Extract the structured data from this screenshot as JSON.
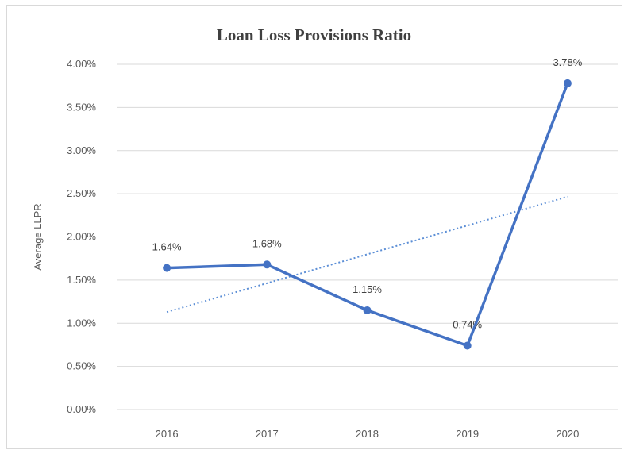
{
  "chart_data": {
    "type": "line",
    "title": "Loan Loss Provisions Ratio",
    "xlabel": "",
    "ylabel": "Average LLPR",
    "categories": [
      "2016",
      "2017",
      "2018",
      "2019",
      "2020"
    ],
    "series": [
      {
        "values": [
          1.64,
          1.68,
          1.15,
          0.74,
          3.78
        ],
        "labels": [
          "1.64%",
          "1.68%",
          "1.15%",
          "0.74%",
          "3.78%"
        ],
        "color": "#4472c4"
      }
    ],
    "trendline": {
      "type": "linear",
      "style": "dotted",
      "color": "#5b8ed6"
    },
    "ylim": [
      0,
      4
    ],
    "ytick_values": [
      0,
      0.5,
      1,
      1.5,
      2,
      2.5,
      3,
      3.5,
      4
    ],
    "ytick_labels": [
      "0.00%",
      "0.50%",
      "1.00%",
      "1.50%",
      "2.00%",
      "2.50%",
      "3.00%",
      "3.50%",
      "4.00%"
    ],
    "grid": true,
    "legend": "none"
  }
}
